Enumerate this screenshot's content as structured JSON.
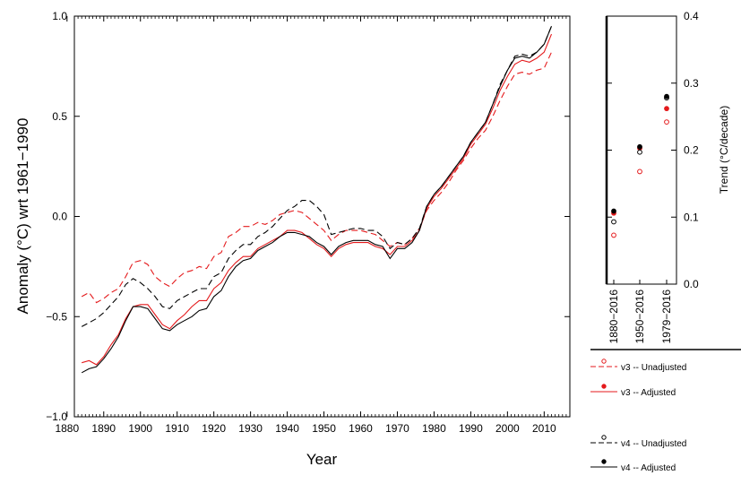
{
  "chart_data": [
    {
      "type": "line",
      "xlabel": "Year",
      "ylabel": "Anomaly (°C) wrt 1961−1990",
      "xlim": [
        1882,
        2017
      ],
      "ylim": [
        -1.0,
        1.0
      ],
      "x_ticks": [
        "1880",
        "1890",
        "1900",
        "1910",
        "1920",
        "1930",
        "1940",
        "1950",
        "1960",
        "1970",
        "1980",
        "1990",
        "2000",
        "2010"
      ],
      "y_ticks": [
        "1.0",
        "0.5",
        "0.0",
        "−0.5",
        "−1.0"
      ],
      "x": [
        1884,
        1886,
        1888,
        1890,
        1892,
        1894,
        1896,
        1898,
        1900,
        1902,
        1904,
        1906,
        1908,
        1910,
        1912,
        1914,
        1916,
        1918,
        1920,
        1922,
        1924,
        1926,
        1928,
        1930,
        1932,
        1934,
        1936,
        1938,
        1940,
        1942,
        1944,
        1946,
        1948,
        1950,
        1952,
        1954,
        1956,
        1958,
        1960,
        1962,
        1964,
        1966,
        1968,
        1970,
        1972,
        1974,
        1976,
        1978,
        1980,
        1982,
        1984,
        1986,
        1988,
        1990,
        1992,
        1994,
        1996,
        1998,
        2000,
        2002,
        2004,
        2006,
        2008,
        2010,
        2012
      ],
      "series": [
        {
          "name": "v3 -- Unadjusted",
          "color": "#e41a1c",
          "dash": "dashed",
          "values": [
            -0.4,
            -0.38,
            -0.43,
            -0.41,
            -0.38,
            -0.36,
            -0.3,
            -0.23,
            -0.22,
            -0.24,
            -0.3,
            -0.33,
            -0.35,
            -0.31,
            -0.28,
            -0.27,
            -0.25,
            -0.26,
            -0.2,
            -0.18,
            -0.1,
            -0.08,
            -0.05,
            -0.05,
            -0.03,
            -0.04,
            -0.02,
            0.01,
            0.02,
            0.03,
            0.02,
            -0.01,
            -0.04,
            -0.07,
            -0.12,
            -0.09,
            -0.07,
            -0.07,
            -0.07,
            -0.08,
            -0.09,
            -0.12,
            -0.15,
            -0.13,
            -0.14,
            -0.11,
            -0.06,
            0.03,
            0.08,
            0.12,
            0.17,
            0.23,
            0.28,
            0.34,
            0.39,
            0.43,
            0.5,
            0.58,
            0.65,
            0.71,
            0.72,
            0.71,
            0.73,
            0.74,
            0.82
          ]
        },
        {
          "name": "v3 -- Adjusted",
          "color": "#e41a1c",
          "dash": "solid",
          "values": [
            -0.73,
            -0.72,
            -0.74,
            -0.7,
            -0.64,
            -0.59,
            -0.51,
            -0.45,
            -0.44,
            -0.44,
            -0.49,
            -0.54,
            -0.56,
            -0.52,
            -0.49,
            -0.45,
            -0.42,
            -0.42,
            -0.36,
            -0.33,
            -0.27,
            -0.23,
            -0.2,
            -0.2,
            -0.16,
            -0.14,
            -0.12,
            -0.1,
            -0.07,
            -0.07,
            -0.08,
            -0.11,
            -0.14,
            -0.16,
            -0.2,
            -0.16,
            -0.14,
            -0.13,
            -0.13,
            -0.13,
            -0.15,
            -0.16,
            -0.19,
            -0.15,
            -0.15,
            -0.12,
            -0.07,
            0.04,
            0.1,
            0.14,
            0.19,
            0.24,
            0.29,
            0.36,
            0.41,
            0.46,
            0.54,
            0.63,
            0.7,
            0.76,
            0.78,
            0.77,
            0.79,
            0.82,
            0.91
          ]
        },
        {
          "name": "v4 -- Unadjusted",
          "color": "#000000",
          "dash": "dashed",
          "values": [
            -0.55,
            -0.53,
            -0.51,
            -0.48,
            -0.44,
            -0.4,
            -0.34,
            -0.31,
            -0.33,
            -0.36,
            -0.4,
            -0.45,
            -0.46,
            -0.42,
            -0.4,
            -0.38,
            -0.36,
            -0.36,
            -0.3,
            -0.28,
            -0.21,
            -0.17,
            -0.14,
            -0.14,
            -0.1,
            -0.08,
            -0.05,
            -0.01,
            0.03,
            0.05,
            0.08,
            0.08,
            0.05,
            0.01,
            -0.09,
            -0.08,
            -0.07,
            -0.06,
            -0.06,
            -0.07,
            -0.07,
            -0.1,
            -0.16,
            -0.13,
            -0.14,
            -0.11,
            -0.06,
            0.05,
            0.11,
            0.15,
            0.2,
            0.25,
            0.3,
            0.37,
            0.42,
            0.47,
            0.56,
            0.66,
            0.73,
            0.8,
            0.81,
            0.8,
            0.82,
            0.86,
            0.95
          ]
        },
        {
          "name": "v4 -- Adjusted",
          "color": "#000000",
          "dash": "solid",
          "values": [
            -0.78,
            -0.76,
            -0.75,
            -0.71,
            -0.66,
            -0.6,
            -0.52,
            -0.45,
            -0.45,
            -0.46,
            -0.51,
            -0.56,
            -0.57,
            -0.54,
            -0.52,
            -0.5,
            -0.47,
            -0.46,
            -0.4,
            -0.37,
            -0.3,
            -0.25,
            -0.22,
            -0.21,
            -0.17,
            -0.15,
            -0.13,
            -0.1,
            -0.08,
            -0.08,
            -0.09,
            -0.1,
            -0.13,
            -0.15,
            -0.19,
            -0.15,
            -0.13,
            -0.12,
            -0.12,
            -0.12,
            -0.14,
            -0.15,
            -0.21,
            -0.16,
            -0.16,
            -0.13,
            -0.07,
            0.05,
            0.11,
            0.15,
            0.2,
            0.25,
            0.3,
            0.37,
            0.42,
            0.47,
            0.56,
            0.65,
            0.73,
            0.79,
            0.8,
            0.79,
            0.82,
            0.86,
            0.95
          ]
        }
      ]
    },
    {
      "type": "scatter",
      "ylabel": "Trend (°C/decade)",
      "ylim": [
        0.0,
        0.4
      ],
      "y_ticks": [
        "0.4",
        "0.3",
        "0.2",
        "0.1",
        "0.0"
      ],
      "categories": [
        "1880−2016",
        "1950−2016",
        "1979−2016"
      ],
      "series": [
        {
          "name": "v3 -- Unadjusted",
          "color": "#e41a1c",
          "marker": "open",
          "values": [
            0.073,
            0.168,
            0.242
          ]
        },
        {
          "name": "v3 -- Adjusted",
          "color": "#e41a1c",
          "marker": "filled",
          "values": [
            0.106,
            0.203,
            0.262
          ]
        },
        {
          "name": "v4 -- Unadjusted",
          "color": "#000000",
          "marker": "open",
          "values": [
            0.093,
            0.197,
            0.278
          ]
        },
        {
          "name": "v4 -- Adjusted",
          "color": "#000000",
          "marker": "filled",
          "values": [
            0.109,
            0.205,
            0.28
          ]
        }
      ]
    }
  ],
  "legend": [
    {
      "label": "v3 -- Unadjusted",
      "color": "#e41a1c",
      "dash": "dashed",
      "marker": "open"
    },
    {
      "label": "v3 -- Adjusted",
      "color": "#e41a1c",
      "dash": "solid",
      "marker": "filled"
    },
    {
      "label": "v4 -- Unadjusted",
      "color": "#000000",
      "dash": "dashed",
      "marker": "open"
    },
    {
      "label": "v4 -- Adjusted",
      "color": "#000000",
      "dash": "solid",
      "marker": "filled"
    }
  ]
}
